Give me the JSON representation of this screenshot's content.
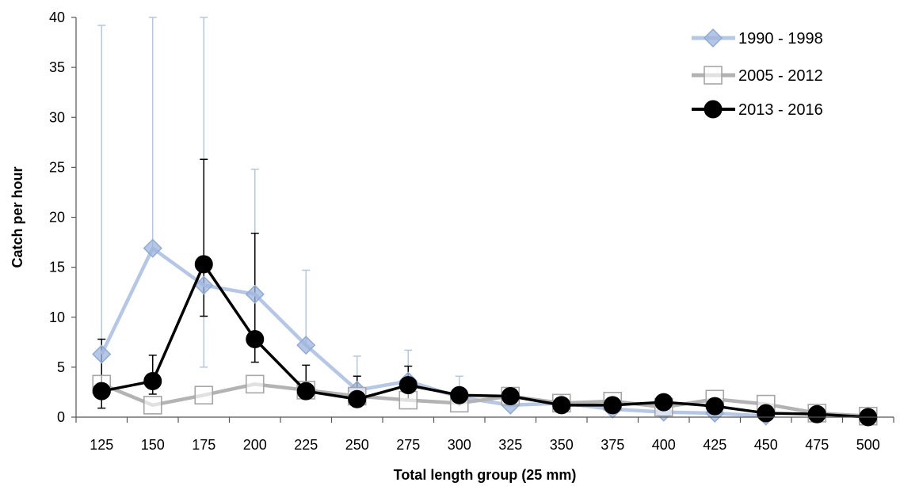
{
  "chart_data": {
    "type": "line",
    "xlabel": "Total length group (25 mm)",
    "ylabel": "Catch per hour",
    "categories": [
      "125",
      "150",
      "175",
      "200",
      "225",
      "250",
      "275",
      "300",
      "325",
      "350",
      "375",
      "400",
      "425",
      "450",
      "475",
      "500"
    ],
    "ylim": [
      0,
      40
    ],
    "yticks": [
      0,
      5,
      10,
      15,
      20,
      25,
      30,
      35,
      40
    ],
    "grid": false,
    "legend_position": "top-right",
    "series": [
      {
        "name": "1990 - 1998",
        "color": "#b4c7e7",
        "marker": "diamond",
        "values": [
          6.3,
          16.9,
          13.2,
          12.3,
          7.2,
          2.7,
          3.6,
          2.0,
          1.2,
          1.4,
          0.8,
          0.5,
          0.4,
          0.1,
          null,
          null
        ],
        "error_upper": [
          39.2,
          40,
          40,
          24.8,
          14.7,
          6.1,
          6.7,
          4.1,
          null,
          null,
          null,
          null,
          null,
          null,
          null,
          null
        ],
        "error_lower": [
          null,
          null,
          5.0,
          null,
          null,
          null,
          null,
          null,
          null,
          null,
          null,
          null,
          null,
          null,
          null,
          null
        ]
      },
      {
        "name": "2005 - 2012",
        "color": "#b3b3b3",
        "marker": "square",
        "values": [
          3.3,
          1.2,
          2.2,
          3.3,
          2.7,
          2.1,
          1.7,
          1.4,
          2.1,
          1.4,
          1.6,
          1.0,
          1.8,
          1.3,
          0.4,
          0.1
        ],
        "error_upper": [
          null,
          null,
          null,
          null,
          null,
          null,
          null,
          null,
          null,
          null,
          null,
          null,
          null,
          null,
          null,
          null
        ],
        "error_lower": [
          null,
          null,
          null,
          null,
          null,
          null,
          null,
          null,
          null,
          null,
          null,
          null,
          null,
          null,
          null,
          null
        ]
      },
      {
        "name": "2013 - 2016",
        "color": "#000000",
        "marker": "circle",
        "values": [
          2.6,
          3.6,
          15.3,
          7.8,
          2.6,
          1.8,
          3.2,
          2.2,
          2.1,
          1.2,
          1.2,
          1.5,
          1.1,
          0.4,
          0.3,
          0.0
        ],
        "error_upper": [
          7.8,
          6.2,
          25.8,
          18.4,
          5.2,
          4.1,
          5.1,
          null,
          null,
          null,
          null,
          null,
          null,
          null,
          null,
          null
        ],
        "error_lower": [
          0.9,
          2.3,
          10.1,
          5.5,
          1.9,
          1.2,
          1.8,
          null,
          null,
          null,
          null,
          null,
          null,
          null,
          null,
          null
        ]
      }
    ]
  }
}
